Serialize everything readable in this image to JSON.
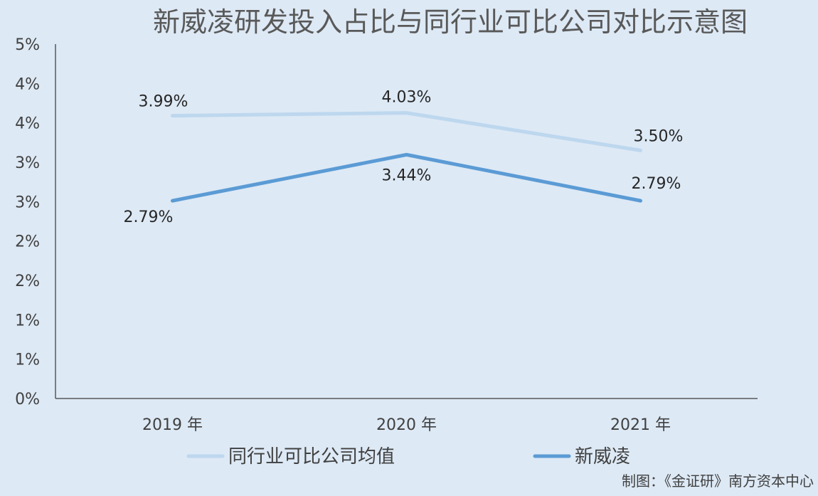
{
  "chart_data": {
    "type": "line",
    "title": "新威凌研发投入占比与同行业可比公司对比示意图",
    "xlabel": "",
    "ylabel": "",
    "categories": [
      "2019 年",
      "2020 年",
      "2021 年"
    ],
    "ylim": [
      0,
      5
    ],
    "y_ticks": [
      "0%",
      "1%",
      "1%",
      "2%",
      "2%",
      "3%",
      "3%",
      "4%",
      "4%",
      "5%"
    ],
    "series": [
      {
        "name": "同行业可比公司均值",
        "values": [
          3.99,
          4.03,
          3.5
        ],
        "labels": [
          "3.99%",
          "4.03%",
          "3.50%"
        ],
        "color": "#bdd7ee"
      },
      {
        "name": "新威凌",
        "values": [
          2.79,
          3.44,
          2.79
        ],
        "labels": [
          "2.79%",
          "3.44%",
          "2.79%"
        ],
        "color": "#5b9bd5"
      }
    ],
    "grid": false,
    "legend_position": "bottom"
  },
  "credit": "制图：《金证研》南方资本中心"
}
